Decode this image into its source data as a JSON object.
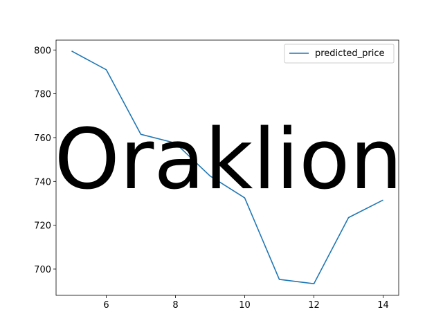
{
  "chart_data": {
    "type": "line",
    "title": "",
    "xlabel": "",
    "ylabel": "",
    "x": [
      5,
      6,
      7,
      8,
      9,
      10,
      11,
      12,
      13,
      14
    ],
    "series": [
      {
        "name": "predicted_price",
        "color": "#1f77b4",
        "values": [
          799.5,
          791.0,
          761.5,
          757.5,
          742.5,
          732.5,
          695.3,
          693.3,
          723.5,
          731.5
        ]
      }
    ],
    "xlim": [
      4.55,
      14.45
    ],
    "ylim": [
      688.0,
      804.5
    ],
    "xticks": [
      6,
      8,
      10,
      12,
      14
    ],
    "yticks": [
      700,
      720,
      740,
      760,
      780,
      800
    ],
    "grid": false,
    "legend_position": "upper right"
  },
  "watermark": {
    "text": "Oraklion"
  }
}
